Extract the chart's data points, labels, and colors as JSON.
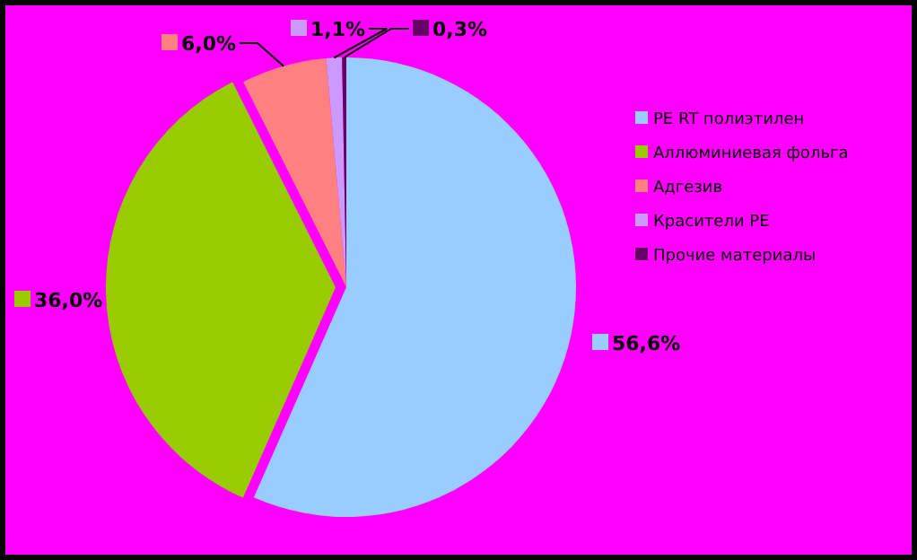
{
  "chart_data": {
    "type": "pie",
    "categories": [
      "PE RT полиэтилен",
      "Аллюминиевая фольга",
      "Адгезив",
      "Красители PE",
      "Прочие материалы"
    ],
    "values": [
      56.6,
      36.0,
      6.0,
      1.1,
      0.3
    ],
    "value_labels": [
      "56,6%",
      "36,0%",
      "6,0%",
      "1,1%",
      "0,3%"
    ],
    "colors": [
      "#99ccff",
      "#99cc00",
      "#ff8080",
      "#cc99ff",
      "#660066"
    ],
    "legend": "right"
  }
}
